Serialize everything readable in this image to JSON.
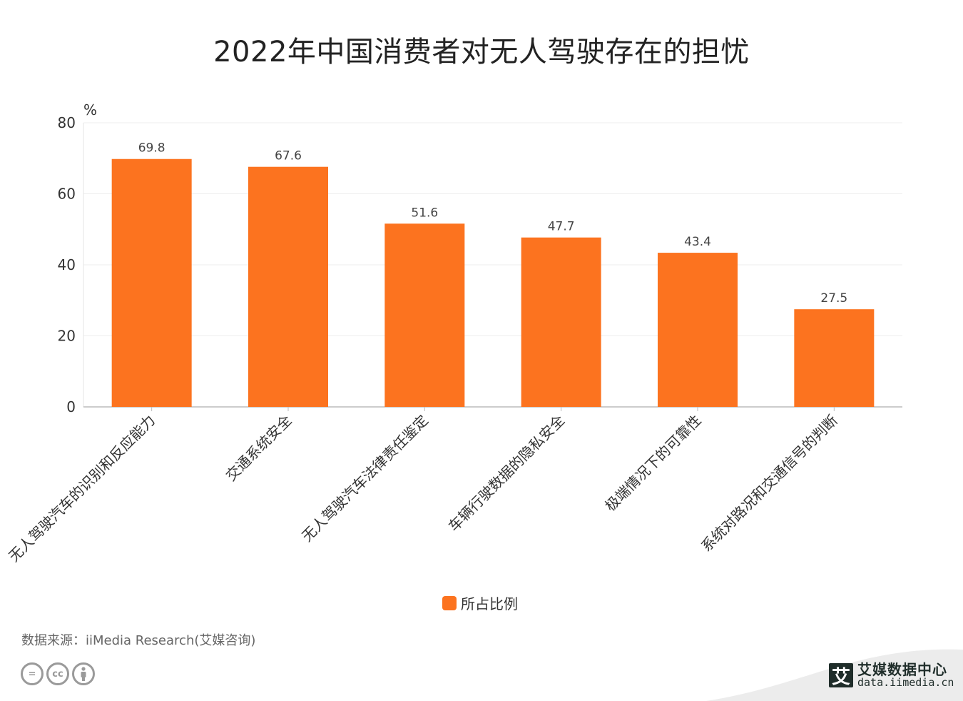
{
  "title": "2022年中国消费者对无人驾驶存在的担忧",
  "chart_data": {
    "type": "bar",
    "title": "2022年中国消费者对无人驾驶存在的担忧",
    "ylabel": "%",
    "ylim": [
      0,
      80
    ],
    "yticks": [
      0,
      20,
      40,
      60,
      80
    ],
    "grid": true,
    "legend_position": "bottom",
    "categories": [
      "无人驾驶汽车的识别和反应能力",
      "交通系统安全",
      "无人驾驶汽车法律责任鉴定",
      "车辆行驶数据的隐私安全",
      "极端情况下的可靠性",
      "系统对路况和交通信号的判断"
    ],
    "series": [
      {
        "name": "所占比例",
        "values": [
          69.8,
          67.6,
          51.6,
          47.7,
          43.4,
          27.5
        ],
        "color": "#fc731f"
      }
    ]
  },
  "legend": {
    "label": "所占比例",
    "color": "#fc731f"
  },
  "source": "数据来源：iiMedia Research(艾媒咨询)",
  "brand": {
    "logo_char": "艾",
    "name": "艾媒数据中心",
    "url": "data.iimedia.cn"
  },
  "icons": [
    "equal-icon",
    "cc-icon",
    "person-icon"
  ]
}
